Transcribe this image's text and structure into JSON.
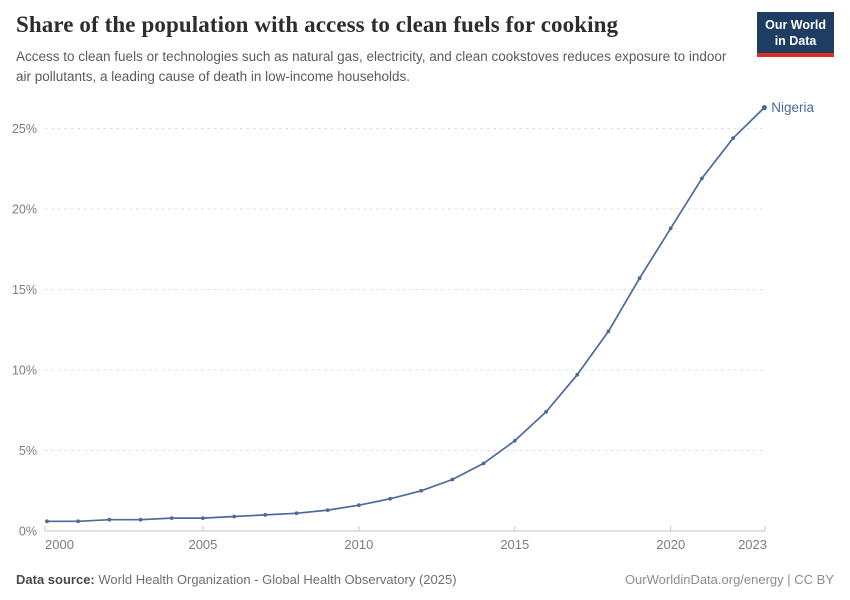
{
  "header": {
    "title": "Share of the population with access to clean fuels for cooking",
    "subtitle": "Access to clean fuels or technologies such as natural gas, electricity, and clean cookstoves reduces exposure to indoor air pollutants, a leading cause of death in low-income households."
  },
  "logo": {
    "line1": "Our World",
    "line2": "in Data"
  },
  "footer": {
    "source_label": "Data source:",
    "source_text": "World Health Organization - Global Health Observatory (2025)",
    "link_text": "OurWorldinData.org/energy | CC BY"
  },
  "colors": {
    "line": "#4c6a9c",
    "series_label": "#4c6a9c",
    "grid": "#dddddd",
    "axis": "#c6c6c6",
    "tick_text": "#7d7d7d",
    "logo_bg": "#1d3d63",
    "logo_stripe": "#dd2f27"
  },
  "chart_data": {
    "type": "line",
    "title": "Share of the population with access to clean fuels for cooking",
    "series_label": "Nigeria",
    "x": [
      2000,
      2001,
      2002,
      2003,
      2004,
      2005,
      2006,
      2007,
      2008,
      2009,
      2010,
      2011,
      2012,
      2013,
      2014,
      2015,
      2016,
      2017,
      2018,
      2019,
      2020,
      2021,
      2022,
      2023
    ],
    "values": [
      0.6,
      0.6,
      0.7,
      0.7,
      0.8,
      0.8,
      0.9,
      1.0,
      1.1,
      1.3,
      1.6,
      2.0,
      2.5,
      3.2,
      4.2,
      5.6,
      7.4,
      9.7,
      12.4,
      15.7,
      18.8,
      21.9,
      24.4,
      26.3
    ],
    "xlabel": "",
    "ylabel": "",
    "ytick_suffix": "%",
    "yticks": [
      0,
      5,
      10,
      15,
      20,
      25
    ],
    "xticks": [
      2000,
      2005,
      2010,
      2015,
      2020,
      2023
    ],
    "xlim": [
      2000,
      2023
    ],
    "ylim": [
      0,
      26.5
    ],
    "grid": "horizontal-dashed",
    "legend_position": "end-of-line-label"
  }
}
